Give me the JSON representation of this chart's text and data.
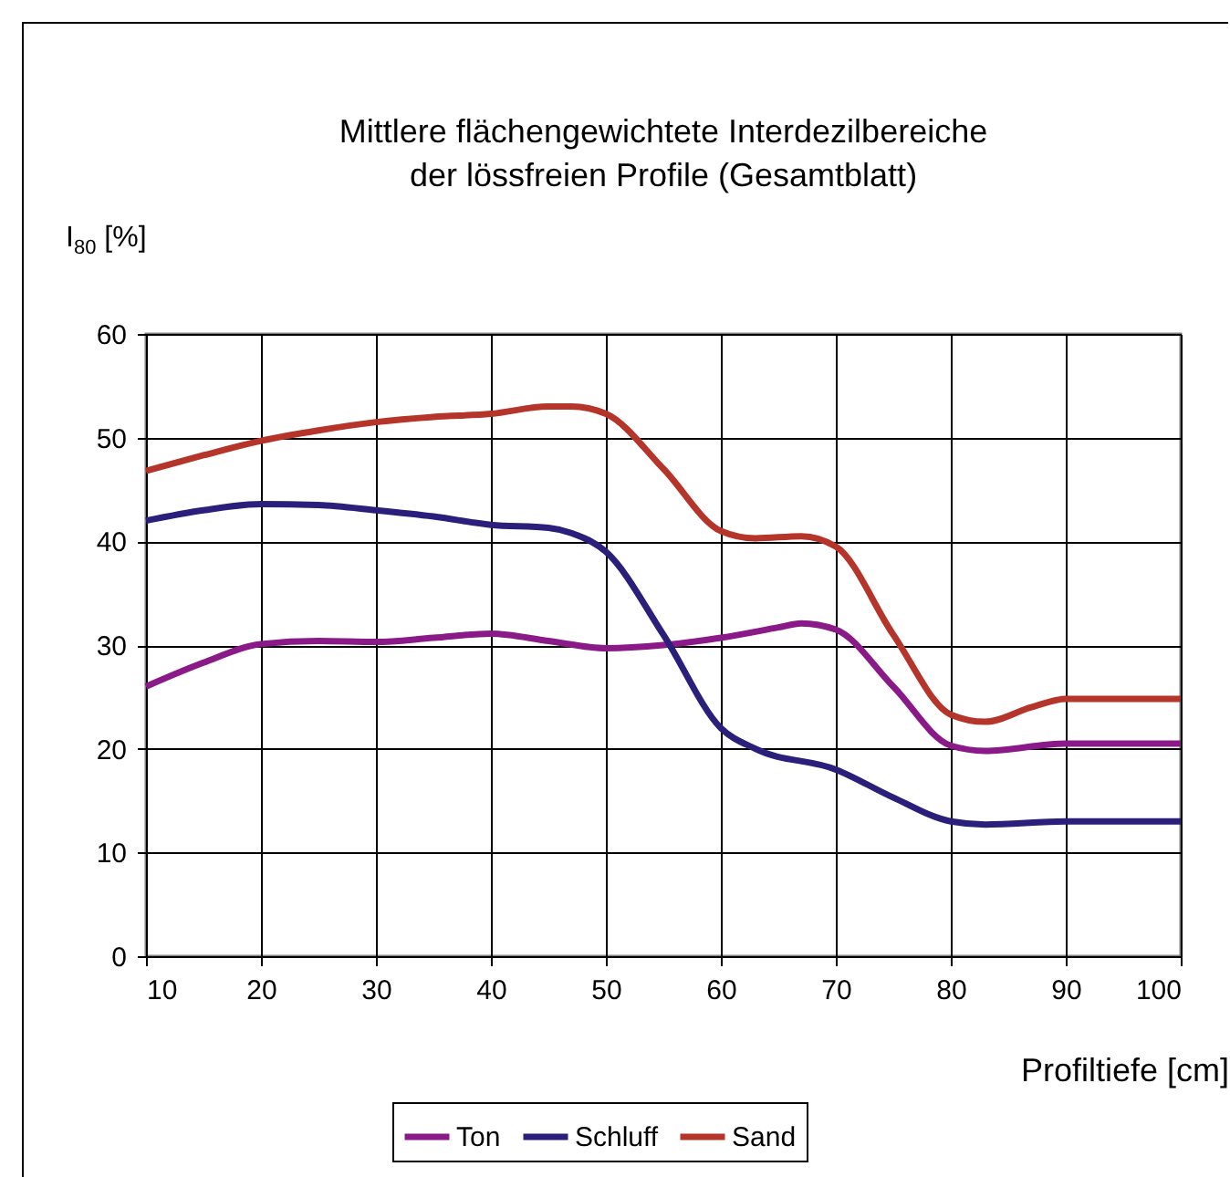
{
  "chart_data": {
    "type": "line",
    "title": "Mittlere flächengewichtete Interdezilbereiche\nder lössfreien Profile (Gesamtblatt)",
    "xlabel": "Profiltiefe [cm]",
    "ylabel": "I$_{80}$ [%]",
    "xlim": [
      10,
      100
    ],
    "xticks": [
      10,
      20,
      30,
      40,
      50,
      60,
      70,
      80,
      90,
      100
    ],
    "ylim": [
      0,
      60
    ],
    "yticks": [
      0,
      10,
      20,
      30,
      40,
      50,
      60
    ],
    "grid": true,
    "legend": "bottom",
    "marker": "none",
    "line_style": "solid",
    "series": [
      {
        "name": "Ton",
        "color": "#8b1a89",
        "x": [
          10,
          15,
          20,
          25,
          30,
          35,
          40,
          45,
          50,
          55,
          60,
          65,
          67,
          70,
          75,
          80,
          83,
          90,
          100
        ],
        "values": [
          26,
          28.3,
          30.1,
          30.4,
          30.3,
          30.7,
          31.1,
          30.4,
          29.7,
          30,
          30.7,
          31.7,
          32.1,
          31.5,
          26,
          20.3,
          19.8,
          20.5,
          20.5
        ]
      },
      {
        "name": "Schluff",
        "color": "#2a1f7a",
        "x": [
          10,
          15,
          20,
          25,
          30,
          35,
          40,
          45,
          47,
          50,
          55,
          60,
          63,
          70,
          75,
          80,
          83,
          90,
          100
        ],
        "values": [
          42,
          43,
          43.6,
          43.5,
          43,
          42.4,
          41.6,
          41.3,
          40.8,
          39,
          31,
          22,
          20,
          18,
          15.3,
          13,
          12.7,
          13,
          13
        ]
      },
      {
        "name": "Sand",
        "color": "#b5352a",
        "x": [
          10,
          15,
          20,
          25,
          30,
          35,
          40,
          45,
          47,
          50,
          55,
          60,
          63,
          67,
          70,
          75,
          80,
          83,
          87,
          90,
          100
        ],
        "values": [
          46.8,
          48.3,
          49.7,
          50.7,
          51.5,
          52,
          52.3,
          53,
          53,
          52.3,
          47,
          41,
          40.3,
          40.5,
          39.5,
          31,
          23.3,
          22.6,
          24,
          24.8,
          24.8
        ]
      }
    ]
  }
}
